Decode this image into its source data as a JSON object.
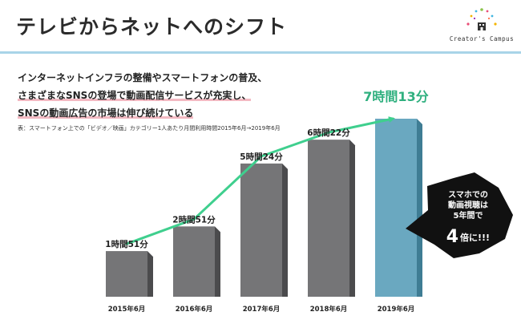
{
  "header": {
    "title": "テレビからネットへのシフト",
    "logo_text": "Creator's Campus"
  },
  "intro": {
    "line1": "インターネットインフラの整備やスマートフォンの普及、",
    "line2": "さまざまなSNSの登場で動画配信サービスが充実し、",
    "line3": "SNSの動画広告の市場は伸び続けている",
    "note": "表：スマートフォン上での「ビデオ／映画」カテゴリー1人あたり月間利用時間2015年6月→2019年6月"
  },
  "callout": {
    "line1": "スマホでの",
    "line2": "動画視聴は",
    "line3": "5年間で",
    "big": "4",
    "line4": "倍に!!!"
  },
  "colors": {
    "bar": "#757577",
    "bar_highlight": "#6aa8c0",
    "trend": "#3fcf8e",
    "highlight_label": "#2fb07f",
    "rule": "#a9d4e8",
    "callout": "#111111"
  },
  "chart_data": {
    "type": "bar",
    "categories": [
      "2015年6月",
      "2016年6月",
      "2017年6月",
      "2018年6月",
      "2019年6月"
    ],
    "values": [
      111,
      171,
      324,
      382,
      433
    ],
    "labels": [
      "1時間51分",
      "2時間51分",
      "5時間24分",
      "6時間22分",
      "7時間13分"
    ],
    "title": "",
    "xlabel": "",
    "ylabel": "",
    "ylim": [
      0,
      433
    ],
    "grid": false,
    "legend": "none",
    "trend_line": true
  }
}
